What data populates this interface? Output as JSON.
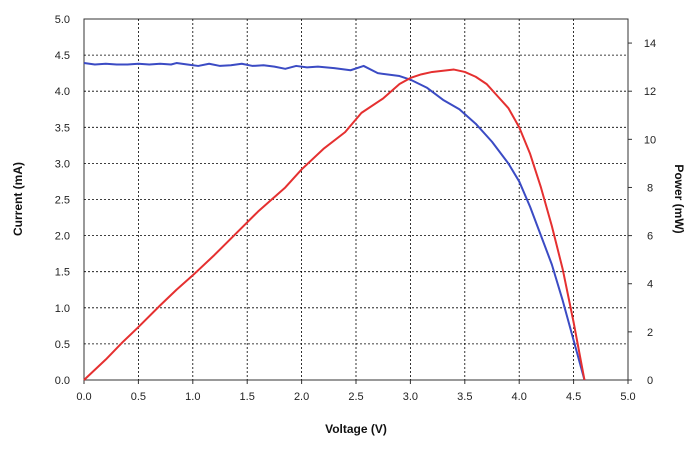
{
  "chart_data": {
    "type": "line",
    "title": "",
    "xlabel": "Voltage (V)",
    "ylabel_left": "Current  (mA)",
    "ylabel_right": "Power  (mW)",
    "xlim": [
      0,
      5
    ],
    "ylim_left": [
      0,
      5
    ],
    "ylim_right": [
      0,
      15
    ],
    "x_ticks": [
      "0.0",
      "0.5",
      "1.0",
      "1.5",
      "2.0",
      "2.5",
      "3.0",
      "3.5",
      "4.0",
      "4.5",
      "5.0"
    ],
    "y_left_ticks": [
      "0.0",
      "0.5",
      "1.0",
      "1.5",
      "2.0",
      "2.5",
      "3.0",
      "3.5",
      "4.0",
      "4.5",
      "5.0"
    ],
    "y_right_ticks": [
      "0",
      "2",
      "4",
      "6",
      "8",
      "10",
      "12",
      "14"
    ],
    "grid": true,
    "series": [
      {
        "axis": "left",
        "color": "#3b4bc4",
        "points": [
          [
            0.0,
            4.39
          ],
          [
            0.1,
            4.37
          ],
          [
            0.2,
            4.38
          ],
          [
            0.3,
            4.37
          ],
          [
            0.4,
            4.37
          ],
          [
            0.5,
            4.38
          ],
          [
            0.6,
            4.37
          ],
          [
            0.7,
            4.38
          ],
          [
            0.8,
            4.37
          ],
          [
            0.85,
            4.39
          ],
          [
            0.95,
            4.37
          ],
          [
            1.05,
            4.35
          ],
          [
            1.15,
            4.38
          ],
          [
            1.25,
            4.35
          ],
          [
            1.35,
            4.36
          ],
          [
            1.45,
            4.38
          ],
          [
            1.55,
            4.35
          ],
          [
            1.65,
            4.36
          ],
          [
            1.75,
            4.34
          ],
          [
            1.85,
            4.31
          ],
          [
            1.95,
            4.35
          ],
          [
            2.05,
            4.33
          ],
          [
            2.15,
            4.34
          ],
          [
            2.3,
            4.32
          ],
          [
            2.45,
            4.29
          ],
          [
            2.57,
            4.35
          ],
          [
            2.7,
            4.25
          ],
          [
            2.9,
            4.21
          ],
          [
            3.0,
            4.16
          ],
          [
            3.15,
            4.05
          ],
          [
            3.3,
            3.88
          ],
          [
            3.45,
            3.75
          ],
          [
            3.6,
            3.55
          ],
          [
            3.75,
            3.3
          ],
          [
            3.9,
            3.0
          ],
          [
            4.0,
            2.75
          ],
          [
            4.1,
            2.4
          ],
          [
            4.2,
            2.0
          ],
          [
            4.3,
            1.6
          ],
          [
            4.4,
            1.1
          ],
          [
            4.5,
            0.55
          ],
          [
            4.6,
            0.0
          ]
        ]
      },
      {
        "axis": "right",
        "color": "#e53030",
        "points": [
          [
            0.0,
            0.0
          ],
          [
            0.2,
            0.85
          ],
          [
            0.35,
            1.55
          ],
          [
            0.5,
            2.2
          ],
          [
            0.7,
            3.1
          ],
          [
            0.85,
            3.75
          ],
          [
            1.0,
            4.35
          ],
          [
            1.2,
            5.2
          ],
          [
            1.4,
            6.1
          ],
          [
            1.6,
            7.0
          ],
          [
            1.85,
            8.0
          ],
          [
            2.0,
            8.75
          ],
          [
            2.2,
            9.6
          ],
          [
            2.4,
            10.3
          ],
          [
            2.55,
            11.1
          ],
          [
            2.75,
            11.7
          ],
          [
            2.9,
            12.3
          ],
          [
            3.0,
            12.55
          ],
          [
            3.1,
            12.7
          ],
          [
            3.2,
            12.8
          ],
          [
            3.3,
            12.85
          ],
          [
            3.4,
            12.9
          ],
          [
            3.5,
            12.8
          ],
          [
            3.6,
            12.6
          ],
          [
            3.7,
            12.3
          ],
          [
            3.8,
            11.8
          ],
          [
            3.9,
            11.3
          ],
          [
            4.0,
            10.5
          ],
          [
            4.1,
            9.4
          ],
          [
            4.2,
            8.0
          ],
          [
            4.3,
            6.4
          ],
          [
            4.4,
            4.6
          ],
          [
            4.5,
            2.4
          ],
          [
            4.6,
            0.0
          ]
        ]
      }
    ]
  }
}
